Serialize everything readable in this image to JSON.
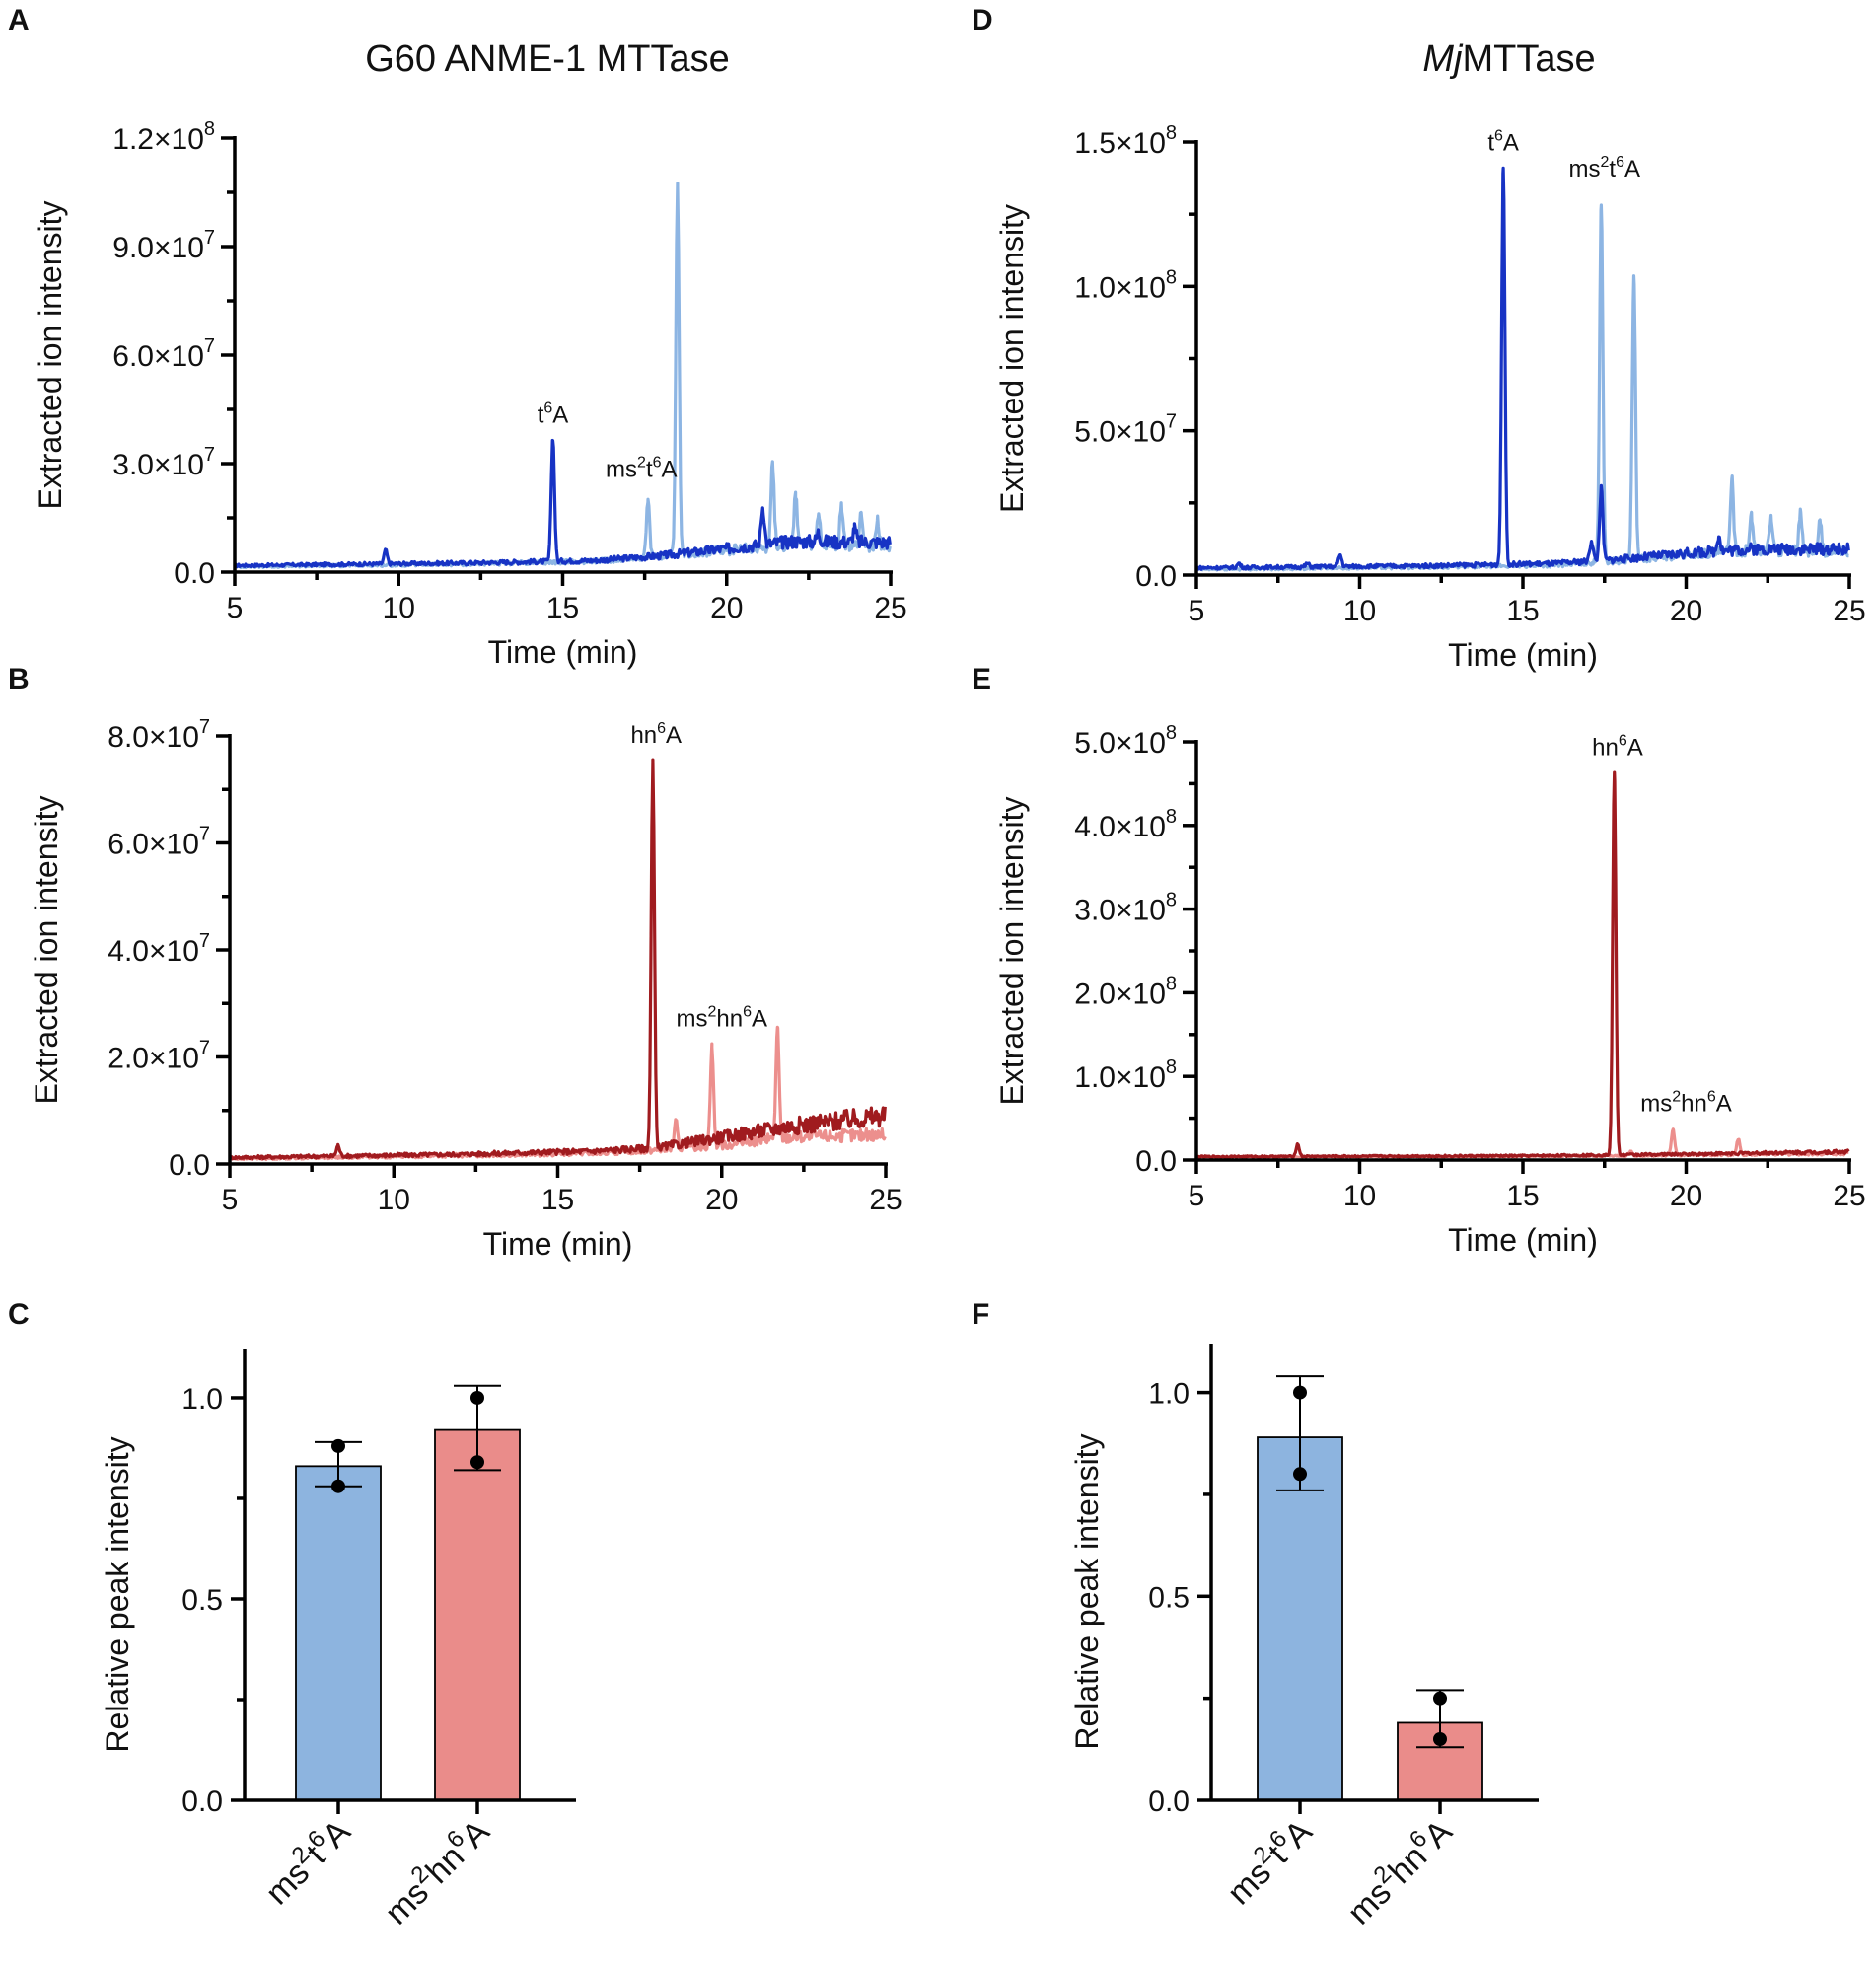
{
  "titles": {
    "left": "G60 ANME-1 MTTase",
    "right_italic": "Mj",
    "right_rest": "MTTase"
  },
  "panel_letters": [
    "A",
    "B",
    "C",
    "D",
    "E",
    "F"
  ],
  "colors": {
    "t6A": "#1733C4",
    "ms2t6A": "#8DB5E3",
    "hn6A": "#A01B1F",
    "ms2hn6A": "#EC8F8D",
    "bar_ms2t6A": "#8DB4DF",
    "bar_ms2hn6A": "#EA8C8A"
  },
  "chart_data": [
    {
      "panel": "A",
      "type": "line",
      "xlabel": "Time (min)",
      "ylabel": "Extracted ion intensity",
      "xlim": [
        5,
        25
      ],
      "ylim": [
        0,
        120000000
      ],
      "xticks": [
        "5",
        "10",
        "15",
        "20",
        "25"
      ],
      "yticks": [
        {
          "m": "0.0"
        },
        {
          "m": "3.0×10",
          "e": "7"
        },
        {
          "m": "6.0×10",
          "e": "7"
        },
        {
          "m": "9.0×10",
          "e": "7"
        },
        {
          "m": "1.2×10",
          "e": "8"
        }
      ],
      "baseline": [
        [
          5,
          1800000
        ],
        [
          12,
          2500000
        ],
        [
          16,
          3200000
        ],
        [
          18,
          4500000
        ],
        [
          20,
          6500000
        ],
        [
          22,
          8500000
        ],
        [
          25,
          8200000
        ]
      ],
      "baseline_light": [
        [
          5,
          1500000
        ],
        [
          12,
          2200000
        ],
        [
          16,
          3000000
        ],
        [
          18,
          4500000
        ],
        [
          20,
          6000000
        ],
        [
          22,
          7500000
        ],
        [
          25,
          7000000
        ]
      ],
      "series": [
        {
          "name": "t6A",
          "color_key": "t6A",
          "peaks": [
            [
              9.6,
              6000000
            ],
            [
              14.7,
              37000000
            ],
            [
              21.1,
              18000000
            ],
            [
              22.8,
              11000000
            ],
            [
              23.9,
              12000000
            ]
          ]
        },
        {
          "name": "ms2t6A",
          "color_key": "ms2t6A",
          "peaks": [
            [
              17.6,
              20000000
            ],
            [
              18.5,
              107000000
            ],
            [
              21.4,
              30000000
            ],
            [
              22.1,
              22000000
            ],
            [
              22.8,
              16000000
            ],
            [
              23.5,
              18000000
            ],
            [
              24.1,
              17000000
            ],
            [
              24.6,
              14000000
            ]
          ]
        }
      ],
      "annotations": [
        {
          "base": "t",
          "sup": "6",
          "tail": "A",
          "x": 14.7,
          "y": 38000000
        },
        {
          "base": "ms",
          "sup": "2",
          "mid": "t",
          "sup2": "6",
          "tail": "A",
          "x": 17.4,
          "y": 23000000
        }
      ]
    },
    {
      "panel": "B",
      "type": "line",
      "xlabel": "Time (min)",
      "ylabel": "Extracted ion intensity",
      "xlim": [
        5,
        25
      ],
      "ylim": [
        0,
        80000000
      ],
      "xticks": [
        "5",
        "10",
        "15",
        "20",
        "25"
      ],
      "yticks": [
        {
          "m": "0.0"
        },
        {
          "m": "2.0×10",
          "e": "7"
        },
        {
          "m": "4.0×10",
          "e": "7"
        },
        {
          "m": "6.0×10",
          "e": "7"
        },
        {
          "m": "8.0×10",
          "e": "7"
        }
      ],
      "baseline": [
        [
          5,
          1200000
        ],
        [
          12,
          1800000
        ],
        [
          16,
          2400000
        ],
        [
          18,
          3000000
        ],
        [
          20,
          5000000
        ],
        [
          22,
          7000000
        ],
        [
          25,
          9000000
        ]
      ],
      "baseline_light": [
        [
          5,
          1000000
        ],
        [
          12,
          1600000
        ],
        [
          16,
          2000000
        ],
        [
          18,
          2600000
        ],
        [
          20,
          3500000
        ],
        [
          22,
          5000000
        ],
        [
          25,
          5500000
        ]
      ],
      "series": [
        {
          "name": "hn6A",
          "color_key": "hn6A",
          "peaks": [
            [
              8.3,
              3500000
            ],
            [
              17.9,
              75000000
            ]
          ]
        },
        {
          "name": "ms2hn6A",
          "color_key": "ms2hn6A",
          "peaks": [
            [
              18.6,
              8000000
            ],
            [
              19.7,
              22000000
            ],
            [
              21.7,
              25000000
            ]
          ]
        }
      ],
      "annotations": [
        {
          "base": "hn",
          "sup": "6",
          "tail": "A",
          "x": 18.0,
          "y": 76500000
        },
        {
          "base": "ms",
          "sup": "2",
          "mid": "hn",
          "sup2": "6",
          "tail": "A",
          "x": 20.0,
          "y": 23500000
        }
      ]
    },
    {
      "panel": "C",
      "type": "bar",
      "ylabel": "Relative peak intensity",
      "ylim": [
        0,
        1.12
      ],
      "yticks": [
        "0.0",
        "0.5",
        "1.0"
      ],
      "categories": [
        {
          "pre": "ms",
          "s1": "2",
          "mid": "t",
          "s2": "6",
          "tail": "A",
          "color_key": "bar_ms2t6A"
        },
        {
          "pre": "ms",
          "s1": "2",
          "mid": "hn",
          "s2": "6",
          "tail": "A",
          "color_key": "bar_ms2hn6A"
        }
      ],
      "values": [
        0.83,
        0.92
      ],
      "error": [
        [
          0.78,
          0.89
        ],
        [
          0.82,
          1.03
        ]
      ],
      "points": [
        [
          0.88,
          0.78
        ],
        [
          1.0,
          0.84
        ]
      ]
    },
    {
      "panel": "D",
      "type": "line",
      "xlabel": "Time (min)",
      "ylabel": "Extracted ion intensity",
      "xlim": [
        5,
        25
      ],
      "ylim": [
        0,
        150000000
      ],
      "xticks": [
        "5",
        "10",
        "15",
        "20",
        "25"
      ],
      "yticks": [
        {
          "m": "0.0"
        },
        {
          "m": "5.0×10",
          "e": "7"
        },
        {
          "m": "1.0×10",
          "e": "8"
        },
        {
          "m": "1.5×10",
          "e": "8"
        }
      ],
      "baseline": [
        [
          5,
          2500000
        ],
        [
          12,
          3200000
        ],
        [
          16,
          4000000
        ],
        [
          18,
          5500000
        ],
        [
          20,
          7500000
        ],
        [
          22,
          9000000
        ],
        [
          25,
          9000000
        ]
      ],
      "baseline_light": [
        [
          5,
          2000000
        ],
        [
          12,
          2800000
        ],
        [
          16,
          3500000
        ],
        [
          18,
          5000000
        ],
        [
          20,
          7000000
        ],
        [
          22,
          8500000
        ],
        [
          25,
          8000000
        ]
      ],
      "series": [
        {
          "name": "t6A",
          "color_key": "t6A",
          "peaks": [
            [
              6.3,
              4000000
            ],
            [
              8.4,
              4000000
            ],
            [
              9.4,
              7000000
            ],
            [
              14.4,
              141000000
            ],
            [
              17.1,
              12000000
            ],
            [
              17.4,
              30000000
            ],
            [
              21.0,
              14000000
            ]
          ]
        },
        {
          "name": "ms2t6A",
          "color_key": "ms2t6A",
          "peaks": [
            [
              17.4,
              129000000
            ],
            [
              18.4,
              103000000
            ],
            [
              21.4,
              33000000
            ],
            [
              22.0,
              20000000
            ],
            [
              22.6,
              20000000
            ],
            [
              23.5,
              21000000
            ],
            [
              24.1,
              18000000
            ]
          ]
        }
      ],
      "annotations": [
        {
          "base": "t",
          "sup": "6",
          "tail": "A",
          "x": 14.4,
          "y": 143000000
        },
        {
          "base": "ms",
          "sup": "2",
          "mid": "t",
          "sup2": "6",
          "tail": "A",
          "x": 17.5,
          "y": 134000000
        }
      ]
    },
    {
      "panel": "E",
      "type": "line",
      "xlabel": "Time (min)",
      "ylabel": "Extracted ion intensity",
      "xlim": [
        5,
        25
      ],
      "ylim": [
        0,
        500000000
      ],
      "xticks": [
        "5",
        "10",
        "15",
        "20",
        "25"
      ],
      "yticks": [
        {
          "m": "0.0"
        },
        {
          "m": "1.0×10",
          "e": "8"
        },
        {
          "m": "2.0×10",
          "e": "8"
        },
        {
          "m": "3.0×10",
          "e": "8"
        },
        {
          "m": "4.0×10",
          "e": "8"
        },
        {
          "m": "5.0×10",
          "e": "8"
        }
      ],
      "baseline": [
        [
          5,
          4000000
        ],
        [
          15,
          5000000
        ],
        [
          20,
          7000000
        ],
        [
          25,
          10000000
        ]
      ],
      "baseline_light": [
        [
          5,
          3500000
        ],
        [
          15,
          4500000
        ],
        [
          20,
          6000000
        ],
        [
          25,
          8000000
        ]
      ],
      "series": [
        {
          "name": "hn6A",
          "color_key": "hn6A",
          "peaks": [
            [
              8.1,
              19000000
            ],
            [
              17.8,
              462000000
            ]
          ]
        },
        {
          "name": "ms2hn6A",
          "color_key": "ms2hn6A",
          "peaks": [
            [
              18.3,
              10000000
            ],
            [
              19.6,
              36000000
            ],
            [
              21.6,
              25000000
            ]
          ]
        }
      ],
      "annotations": [
        {
          "base": "hn",
          "sup": "6",
          "tail": "A",
          "x": 17.9,
          "y": 470000000
        },
        {
          "base": "ms",
          "sup": "2",
          "mid": "hn",
          "sup2": "6",
          "tail": "A",
          "x": 20.0,
          "y": 44000000
        }
      ]
    },
    {
      "panel": "F",
      "type": "bar",
      "ylabel": "Relative peak intensity",
      "ylim": [
        0,
        1.12
      ],
      "yticks": [
        "0.0",
        "0.5",
        "1.0"
      ],
      "categories": [
        {
          "pre": "ms",
          "s1": "2",
          "mid": "t",
          "s2": "6",
          "tail": "A",
          "color_key": "bar_ms2t6A"
        },
        {
          "pre": "ms",
          "s1": "2",
          "mid": "hn",
          "s2": "6",
          "tail": "A",
          "color_key": "bar_ms2hn6A"
        }
      ],
      "values": [
        0.89,
        0.19
      ],
      "error": [
        [
          0.76,
          1.04
        ],
        [
          0.13,
          0.27
        ]
      ],
      "points": [
        [
          1.0,
          0.8
        ],
        [
          0.25,
          0.15
        ]
      ]
    }
  ]
}
